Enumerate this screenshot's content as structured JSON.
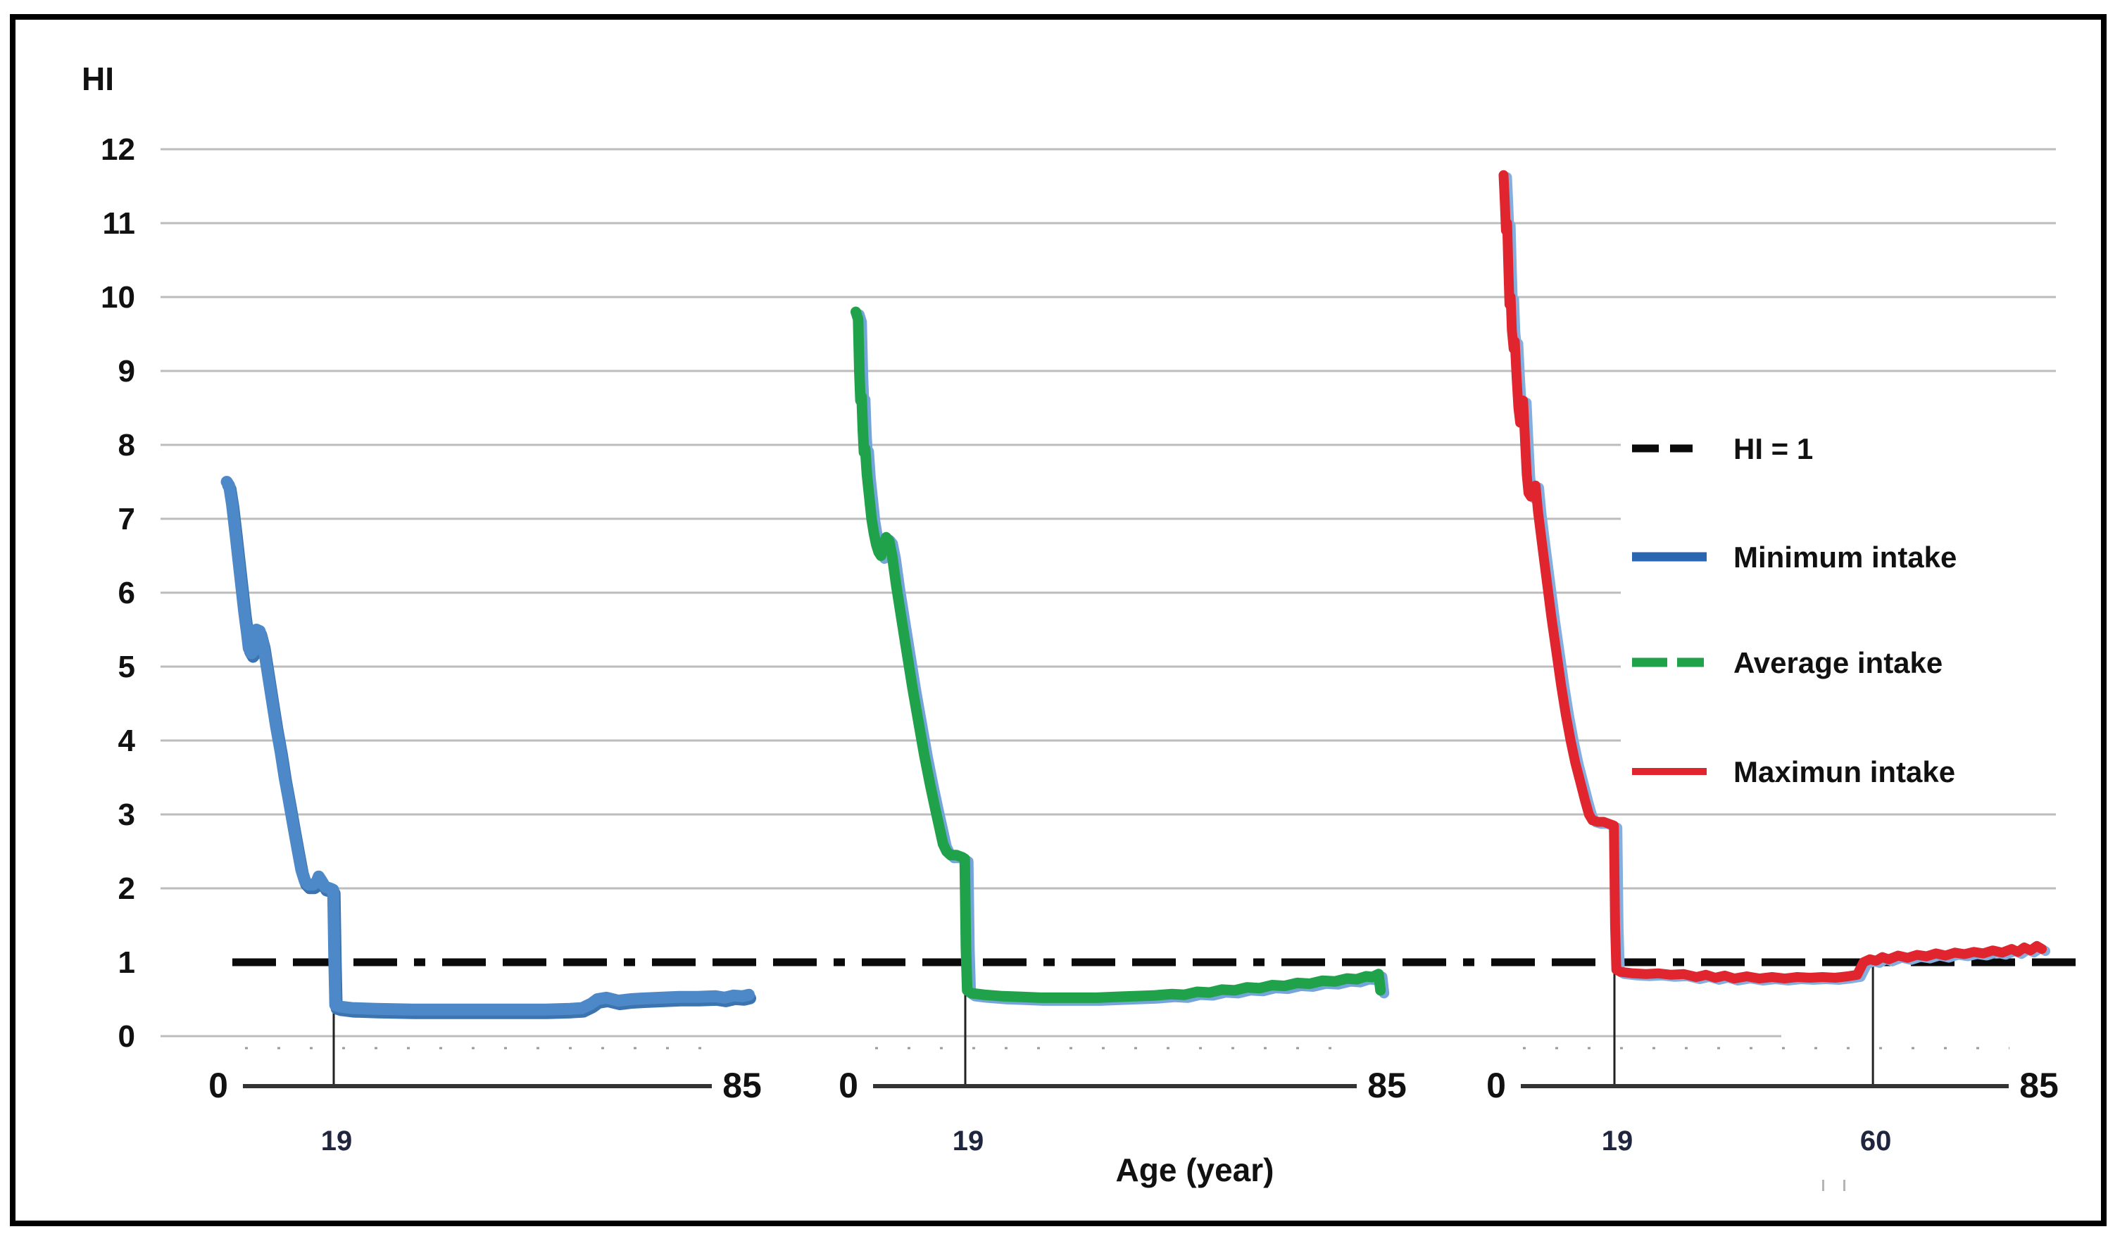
{
  "figure": {
    "ylabel": "HI",
    "xlabel": "Age (year)",
    "y_ticks": [
      12,
      11,
      10,
      9,
      8,
      7,
      6,
      5,
      4,
      3,
      2,
      1,
      0
    ],
    "reference_line": {
      "label": "HI = 1",
      "value": 1
    }
  },
  "colors": {
    "grid": "#bcbcbc",
    "axis": "#333333",
    "reference": "#0a0a0a",
    "minimum": "#4d89c8",
    "average": "#1fa24a",
    "maximum": "#e0252f",
    "legend_minimum": "#2a65b2"
  },
  "legend": {
    "items": [
      {
        "label": "HI = 1",
        "style": "dashed",
        "color": "#0a0a0a"
      },
      {
        "label": "Minimum intake",
        "style": "solid",
        "color": "#2a65b2"
      },
      {
        "label": "Average intake",
        "style": "dashed2",
        "color": "#1fa24a"
      },
      {
        "label": "Maximun intake",
        "style": "solid",
        "color": "#e0252f"
      }
    ]
  },
  "chart_data": {
    "type": "line",
    "title": "",
    "xlabel": "Age (year)",
    "ylabel": "HI",
    "ylim": [
      0,
      12
    ],
    "xlim_years": [
      0,
      85
    ],
    "grid": true,
    "legend_position": "right-middle",
    "hline": 1,
    "panels": [
      {
        "name": "Minimum intake",
        "x_start_label": "0",
        "x_end_label": "85",
        "markers": [
          {
            "age": 19,
            "label": "19"
          }
        ],
        "points": [
          [
            0.5,
            7.5
          ],
          [
            0.9,
            7.45
          ],
          [
            1.4,
            7.2
          ],
          [
            2,
            6.8
          ],
          [
            2.5,
            6.45
          ],
          [
            3,
            6.1
          ],
          [
            3.5,
            5.75
          ],
          [
            4,
            5.45
          ],
          [
            4.3,
            5.25
          ],
          [
            4.8,
            5.18
          ],
          [
            5.2,
            5.22
          ],
          [
            5.6,
            5.5
          ],
          [
            6.2,
            5.48
          ],
          [
            6.8,
            5.3
          ],
          [
            7.5,
            4.95
          ],
          [
            8.2,
            4.6
          ],
          [
            9,
            4.2
          ],
          [
            9.8,
            3.85
          ],
          [
            10.5,
            3.5
          ],
          [
            11.2,
            3.2
          ],
          [
            12,
            2.85
          ],
          [
            12.8,
            2.5
          ],
          [
            13.4,
            2.25
          ],
          [
            14,
            2.1
          ],
          [
            14.6,
            2.05
          ],
          [
            15.4,
            2.05
          ],
          [
            16,
            2.08
          ],
          [
            16.4,
            2.16
          ],
          [
            16.9,
            2.1
          ],
          [
            17.5,
            2.02
          ],
          [
            18.3,
            2
          ],
          [
            18.9,
            1.98
          ],
          [
            19.1,
            1
          ],
          [
            19.25,
            0.42
          ],
          [
            20,
            0.4
          ],
          [
            22,
            0.38
          ],
          [
            26,
            0.37
          ],
          [
            32,
            0.36
          ],
          [
            40,
            0.36
          ],
          [
            48,
            0.36
          ],
          [
            54,
            0.36
          ],
          [
            58,
            0.37
          ],
          [
            60,
            0.38
          ],
          [
            61.5,
            0.44
          ],
          [
            62.5,
            0.5
          ],
          [
            64,
            0.52
          ],
          [
            65,
            0.5
          ],
          [
            66,
            0.48
          ],
          [
            68,
            0.5
          ],
          [
            70,
            0.51
          ],
          [
            73,
            0.52
          ],
          [
            76,
            0.53
          ],
          [
            79,
            0.53
          ],
          [
            82,
            0.54
          ],
          [
            83.5,
            0.52
          ],
          [
            85,
            0.55
          ],
          [
            86.5,
            0.54
          ],
          [
            87.5,
            0.56
          ]
        ]
      },
      {
        "name": "Average intake",
        "x_start_label": "0",
        "x_end_label": "85",
        "markers": [
          {
            "age": 19,
            "label": "19"
          }
        ],
        "points": [
          [
            0.3,
            9.8
          ],
          [
            0.7,
            9.7
          ],
          [
            0.9,
            9
          ],
          [
            1.1,
            8.6
          ],
          [
            1.3,
            8.65
          ],
          [
            1.5,
            8.2
          ],
          [
            1.7,
            7.9
          ],
          [
            1.9,
            7.95
          ],
          [
            2.2,
            7.6
          ],
          [
            2.6,
            7.3
          ],
          [
            3,
            7
          ],
          [
            3.4,
            6.8
          ],
          [
            3.8,
            6.65
          ],
          [
            4.2,
            6.55
          ],
          [
            4.6,
            6.5
          ],
          [
            5,
            6.65
          ],
          [
            5.5,
            6.75
          ],
          [
            6,
            6.7
          ],
          [
            6.5,
            6.5
          ],
          [
            7.2,
            6.1
          ],
          [
            8,
            5.7
          ],
          [
            9,
            5.2
          ],
          [
            10,
            4.7
          ],
          [
            11,
            4.25
          ],
          [
            12,
            3.8
          ],
          [
            13,
            3.4
          ],
          [
            13.8,
            3.1
          ],
          [
            14.5,
            2.85
          ],
          [
            15.2,
            2.6
          ],
          [
            15.8,
            2.5
          ],
          [
            16.5,
            2.45
          ],
          [
            17.5,
            2.45
          ],
          [
            18.5,
            2.42
          ],
          [
            18.9,
            2.4
          ],
          [
            19.1,
            1.2
          ],
          [
            19.3,
            0.62
          ],
          [
            20,
            0.58
          ],
          [
            22,
            0.56
          ],
          [
            25,
            0.54
          ],
          [
            28,
            0.53
          ],
          [
            31,
            0.52
          ],
          [
            34,
            0.52
          ],
          [
            37,
            0.52
          ],
          [
            40,
            0.52
          ],
          [
            43,
            0.53
          ],
          [
            46,
            0.54
          ],
          [
            49,
            0.55
          ],
          [
            52,
            0.57
          ],
          [
            54,
            0.56
          ],
          [
            56,
            0.6
          ],
          [
            58,
            0.59
          ],
          [
            60,
            0.63
          ],
          [
            62,
            0.62
          ],
          [
            64,
            0.66
          ],
          [
            66,
            0.65
          ],
          [
            68,
            0.69
          ],
          [
            70,
            0.68
          ],
          [
            72,
            0.72
          ],
          [
            74,
            0.71
          ],
          [
            76,
            0.75
          ],
          [
            78,
            0.74
          ],
          [
            80,
            0.78
          ],
          [
            81.5,
            0.77
          ],
          [
            83,
            0.81
          ],
          [
            84,
            0.8
          ],
          [
            85,
            0.84
          ],
          [
            85.3,
            0.62
          ]
        ]
      },
      {
        "name": "Maximun intake",
        "x_start_label": "0",
        "x_end_label": "85",
        "markers": [
          {
            "age": 19,
            "label": "19"
          },
          {
            "age": 60,
            "label": "60"
          }
        ],
        "points": [
          [
            0.3,
            11.65
          ],
          [
            0.5,
            11.3
          ],
          [
            0.7,
            10.9
          ],
          [
            0.9,
            11
          ],
          [
            1.1,
            10.4
          ],
          [
            1.3,
            9.9
          ],
          [
            1.5,
            10
          ],
          [
            1.7,
            9.55
          ],
          [
            2,
            9.3
          ],
          [
            2.2,
            9.4
          ],
          [
            2.5,
            8.9
          ],
          [
            2.8,
            8.5
          ],
          [
            3.1,
            8.3
          ],
          [
            3.3,
            8.55
          ],
          [
            3.6,
            8.6
          ],
          [
            3.9,
            8.1
          ],
          [
            4.2,
            7.6
          ],
          [
            4.5,
            7.35
          ],
          [
            4.9,
            7.3
          ],
          [
            5.3,
            7.42
          ],
          [
            5.7,
            7.45
          ],
          [
            6.1,
            7.1
          ],
          [
            6.8,
            6.65
          ],
          [
            7.6,
            6.15
          ],
          [
            8.4,
            5.65
          ],
          [
            9.2,
            5.2
          ],
          [
            10,
            4.75
          ],
          [
            10.8,
            4.35
          ],
          [
            11.6,
            4
          ],
          [
            12.4,
            3.7
          ],
          [
            13.2,
            3.45
          ],
          [
            14,
            3.2
          ],
          [
            14.7,
            3
          ],
          [
            15.3,
            2.92
          ],
          [
            16.2,
            2.9
          ],
          [
            17.2,
            2.9
          ],
          [
            18.2,
            2.87
          ],
          [
            18.9,
            2.85
          ],
          [
            19.1,
            1.5
          ],
          [
            19.3,
            0.9
          ],
          [
            20,
            0.87
          ],
          [
            22,
            0.85
          ],
          [
            24,
            0.84
          ],
          [
            26,
            0.85
          ],
          [
            28,
            0.83
          ],
          [
            30,
            0.84
          ],
          [
            32,
            0.8
          ],
          [
            33.5,
            0.83
          ],
          [
            35,
            0.79
          ],
          [
            36.5,
            0.82
          ],
          [
            38,
            0.78
          ],
          [
            40,
            0.81
          ],
          [
            42,
            0.78
          ],
          [
            44,
            0.8
          ],
          [
            46,
            0.78
          ],
          [
            48,
            0.8
          ],
          [
            50,
            0.79
          ],
          [
            52,
            0.8
          ],
          [
            54,
            0.79
          ],
          [
            56,
            0.81
          ],
          [
            57.5,
            0.83
          ],
          [
            58.5,
            1
          ],
          [
            59.5,
            1.04
          ],
          [
            60.5,
            1.02
          ],
          [
            61.5,
            1.07
          ],
          [
            62.5,
            1.04
          ],
          [
            64,
            1.09
          ],
          [
            65.5,
            1.06
          ],
          [
            67,
            1.1
          ],
          [
            68.5,
            1.08
          ],
          [
            70,
            1.12
          ],
          [
            71.5,
            1.09
          ],
          [
            73,
            1.13
          ],
          [
            74.5,
            1.11
          ],
          [
            76,
            1.14
          ],
          [
            77.5,
            1.12
          ],
          [
            79,
            1.16
          ],
          [
            80.5,
            1.13
          ],
          [
            82,
            1.18
          ],
          [
            83,
            1.14
          ],
          [
            84,
            1.2
          ],
          [
            85,
            1.16
          ],
          [
            86,
            1.22
          ],
          [
            86.8,
            1.18
          ]
        ]
      }
    ]
  }
}
